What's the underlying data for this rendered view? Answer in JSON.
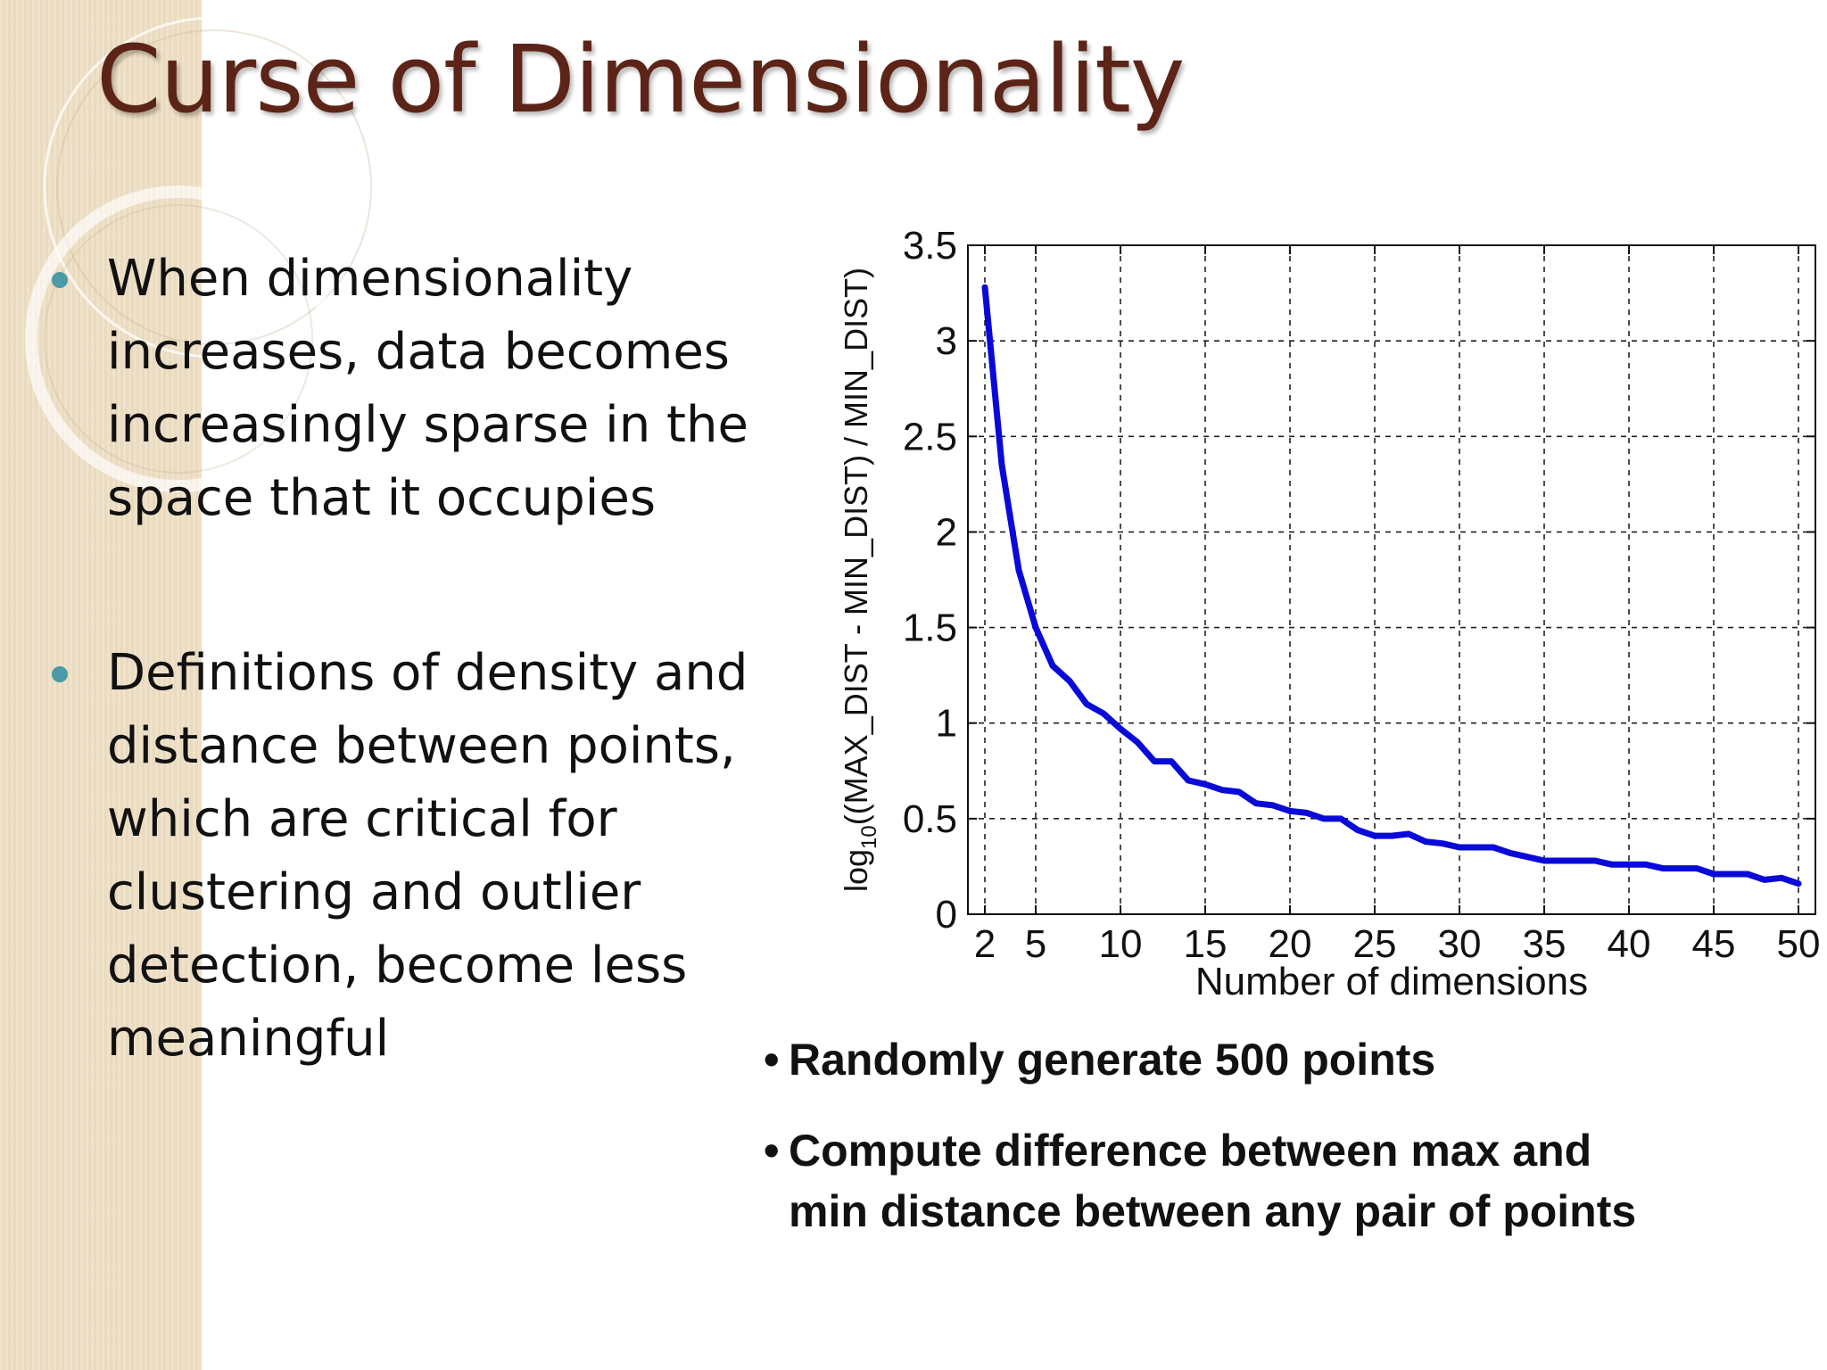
{
  "slide": {
    "title": "Curse of Dimensionality",
    "bullets": [
      {
        "lines": [
          "When dimensionality",
          "increases, data becomes",
          "increasingly sparse in the",
          "space that it occupies"
        ]
      },
      {
        "lines": [
          "Definitions of density and",
          "distance between points,",
          "which are critical for",
          "clustering and outlier",
          "detection, become less",
          "meaningful"
        ]
      }
    ],
    "notes": [
      {
        "mark": "•",
        "lines": [
          "Randomly generate 500 points"
        ]
      },
      {
        "mark": "•",
        "lines": [
          "Compute difference between max and",
          "min distance between any pair of points"
        ]
      }
    ],
    "colors": {
      "title": "#5c2417",
      "bullet_dot": "#4a9aa8",
      "side_band": "#eedfc4",
      "series_line": "#0a0ad8"
    }
  },
  "chart_data": {
    "type": "line",
    "title": "",
    "xlabel": "Number of dimensions",
    "ylabel": {
      "pre": "log",
      "sub": "10",
      "post": "((MAX_DIST - MIN_DIST) / MIN_DIST)"
    },
    "xlim": [
      1,
      51
    ],
    "ylim": [
      0,
      3.5
    ],
    "xticks": [
      2,
      5,
      10,
      15,
      20,
      25,
      30,
      35,
      40,
      45,
      50
    ],
    "xtick_labels": [
      "2",
      "5",
      "10",
      "15",
      "20",
      "25",
      "30",
      "35",
      "40",
      "45",
      "50"
    ],
    "yticks": [
      0,
      0.5,
      1,
      1.5,
      2,
      2.5,
      3,
      3.5
    ],
    "ytick_labels": [
      "0",
      "0.5",
      "1",
      "1.5",
      "2",
      "2.5",
      "3",
      "3.5"
    ],
    "grid": true,
    "series": [
      {
        "x": [
          2,
          3,
          4,
          5,
          6,
          7,
          8,
          9,
          10,
          11,
          12,
          13,
          14,
          15,
          16,
          17,
          18,
          19,
          20,
          21,
          22,
          23,
          24,
          25,
          26,
          27,
          28,
          29,
          30,
          31,
          32,
          33,
          34,
          35,
          36,
          37,
          38,
          39,
          40,
          41,
          42,
          43,
          44,
          45,
          46,
          47,
          48,
          49,
          50
        ],
        "y": [
          3.28,
          2.35,
          1.8,
          1.5,
          1.3,
          1.22,
          1.1,
          1.05,
          0.97,
          0.9,
          0.8,
          0.8,
          0.7,
          0.68,
          0.65,
          0.64,
          0.58,
          0.57,
          0.54,
          0.53,
          0.5,
          0.5,
          0.44,
          0.41,
          0.41,
          0.42,
          0.38,
          0.37,
          0.35,
          0.35,
          0.35,
          0.32,
          0.3,
          0.28,
          0.28,
          0.28,
          0.28,
          0.26,
          0.26,
          0.26,
          0.24,
          0.24,
          0.24,
          0.21,
          0.21,
          0.21,
          0.18,
          0.19,
          0.16
        ]
      }
    ]
  }
}
